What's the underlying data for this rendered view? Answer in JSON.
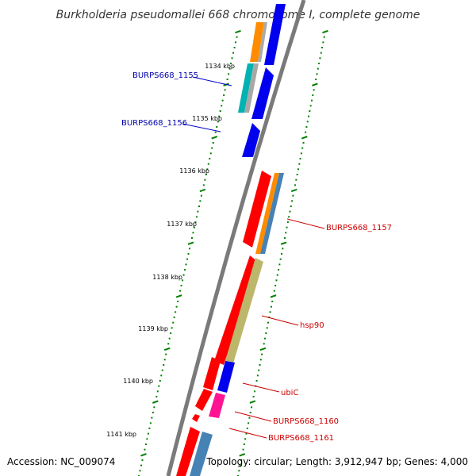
{
  "title": "Burkholderia pseudomallei 668 chromosome I, complete genome",
  "footer": {
    "accession": "Accession: NC_009074",
    "topology": "Topology: circular; Length: 3,912,947 bp; Genes: 4,000"
  },
  "colors": {
    "backbone": "#808080",
    "tick": "#008000",
    "label_blue": "#0000aa",
    "label_red": "#cc0000"
  },
  "kbp_labels": [
    "1134 kbp",
    "1135 kbp",
    "1136 kbp",
    "1137 kbp",
    "1138 kbp",
    "1139 kbp",
    "1140 kbp",
    "1141 kbp"
  ],
  "gene_labels": [
    "BURPS668_1155",
    "BURPS668_1156",
    "BURPS668_1157",
    "hsp90",
    "ubiC",
    "BURPS668_1160",
    "BURPS668_1161"
  ]
}
